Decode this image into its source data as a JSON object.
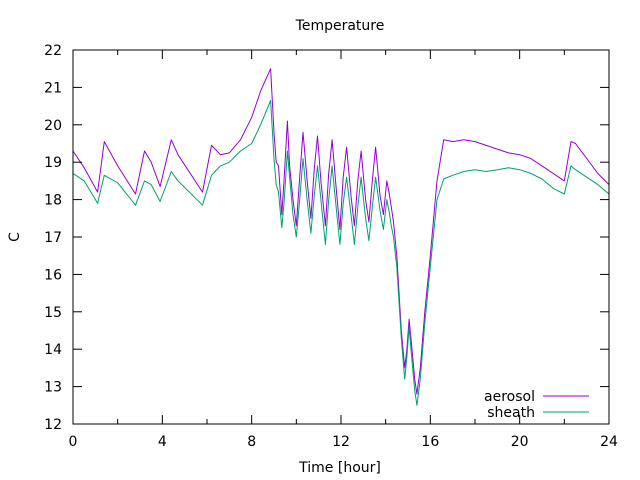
{
  "chart_data": {
    "type": "line",
    "title": "Temperature",
    "xlabel": "Time [hour]",
    "ylabel": "C",
    "xlim": [
      0,
      24
    ],
    "ylim": [
      12,
      22
    ],
    "xticks": [
      0,
      4,
      8,
      12,
      16,
      20,
      24
    ],
    "yticks": [
      12,
      13,
      14,
      15,
      16,
      17,
      18,
      19,
      20,
      21,
      22
    ],
    "x_minor_per_major": 2,
    "y_minor_per_major": 1,
    "grid": false,
    "legend_position": "bottom-right",
    "series": [
      {
        "name": "aerosol",
        "color": "#9400d3",
        "points": [
          [
            0,
            19.3
          ],
          [
            0.5,
            18.85
          ],
          [
            1.1,
            18.2
          ],
          [
            1.4,
            19.55
          ],
          [
            2.0,
            18.9
          ],
          [
            2.8,
            18.15
          ],
          [
            3.2,
            19.3
          ],
          [
            3.5,
            19.0
          ],
          [
            3.9,
            18.35
          ],
          [
            4.4,
            19.6
          ],
          [
            4.7,
            19.2
          ],
          [
            5.8,
            18.2
          ],
          [
            6.2,
            19.45
          ],
          [
            6.6,
            19.2
          ],
          [
            7.0,
            19.25
          ],
          [
            7.5,
            19.6
          ],
          [
            8.0,
            20.2
          ],
          [
            8.4,
            20.9
          ],
          [
            8.85,
            21.5
          ],
          [
            9.0,
            19.8
          ],
          [
            9.1,
            19.0
          ],
          [
            9.2,
            18.9
          ],
          [
            9.35,
            17.6
          ],
          [
            9.45,
            18.5
          ],
          [
            9.6,
            20.1
          ],
          [
            9.7,
            18.9
          ],
          [
            9.85,
            18.0
          ],
          [
            10.0,
            17.3
          ],
          [
            10.15,
            18.6
          ],
          [
            10.3,
            19.8
          ],
          [
            10.5,
            18.4
          ],
          [
            10.65,
            17.5
          ],
          [
            10.8,
            18.8
          ],
          [
            10.95,
            19.7
          ],
          [
            11.1,
            18.5
          ],
          [
            11.3,
            17.3
          ],
          [
            11.45,
            18.7
          ],
          [
            11.6,
            19.6
          ],
          [
            11.8,
            18.2
          ],
          [
            11.95,
            17.2
          ],
          [
            12.1,
            18.6
          ],
          [
            12.25,
            19.4
          ],
          [
            12.45,
            18.1
          ],
          [
            12.6,
            17.3
          ],
          [
            12.75,
            18.5
          ],
          [
            12.9,
            19.3
          ],
          [
            13.1,
            18.0
          ],
          [
            13.25,
            17.4
          ],
          [
            13.4,
            18.5
          ],
          [
            13.55,
            19.4
          ],
          [
            13.75,
            18.1
          ],
          [
            13.9,
            17.6
          ],
          [
            14.05,
            18.5
          ],
          [
            14.15,
            18.2
          ],
          [
            14.25,
            17.8
          ],
          [
            14.35,
            17.4
          ],
          [
            14.5,
            16.5
          ],
          [
            14.7,
            14.5
          ],
          [
            14.85,
            13.5
          ],
          [
            14.95,
            14.0
          ],
          [
            15.05,
            14.8
          ],
          [
            15.15,
            14.2
          ],
          [
            15.3,
            13.2
          ],
          [
            15.4,
            12.8
          ],
          [
            15.55,
            13.5
          ],
          [
            15.75,
            15.0
          ],
          [
            16.0,
            16.5
          ],
          [
            16.3,
            18.5
          ],
          [
            16.6,
            19.6
          ],
          [
            17.0,
            19.55
          ],
          [
            17.5,
            19.6
          ],
          [
            18.0,
            19.55
          ],
          [
            18.5,
            19.45
          ],
          [
            19.0,
            19.35
          ],
          [
            19.5,
            19.25
          ],
          [
            20.0,
            19.2
          ],
          [
            20.5,
            19.1
          ],
          [
            21.0,
            18.9
          ],
          [
            21.5,
            18.7
          ],
          [
            22.0,
            18.5
          ],
          [
            22.3,
            19.55
          ],
          [
            22.5,
            19.5
          ],
          [
            23.0,
            19.1
          ],
          [
            23.5,
            18.7
          ],
          [
            24.0,
            18.4
          ]
        ]
      },
      {
        "name": "sheath",
        "color": "#009e73",
        "points": [
          [
            0,
            18.7
          ],
          [
            0.5,
            18.5
          ],
          [
            1.1,
            17.9
          ],
          [
            1.4,
            18.65
          ],
          [
            2.0,
            18.45
          ],
          [
            2.8,
            17.85
          ],
          [
            3.2,
            18.5
          ],
          [
            3.5,
            18.4
          ],
          [
            3.9,
            17.95
          ],
          [
            4.4,
            18.75
          ],
          [
            4.7,
            18.5
          ],
          [
            5.8,
            17.85
          ],
          [
            6.2,
            18.65
          ],
          [
            6.6,
            18.9
          ],
          [
            7.0,
            19.0
          ],
          [
            7.5,
            19.3
          ],
          [
            8.0,
            19.5
          ],
          [
            8.4,
            20.0
          ],
          [
            8.85,
            20.65
          ],
          [
            9.0,
            19.1
          ],
          [
            9.1,
            18.4
          ],
          [
            9.2,
            18.2
          ],
          [
            9.35,
            17.25
          ],
          [
            9.45,
            17.9
          ],
          [
            9.6,
            19.3
          ],
          [
            9.7,
            18.6
          ],
          [
            9.85,
            17.6
          ],
          [
            10.0,
            17.0
          ],
          [
            10.15,
            18.0
          ],
          [
            10.3,
            19.1
          ],
          [
            10.5,
            17.9
          ],
          [
            10.65,
            17.1
          ],
          [
            10.8,
            18.1
          ],
          [
            10.95,
            18.9
          ],
          [
            11.1,
            18.0
          ],
          [
            11.3,
            16.8
          ],
          [
            11.45,
            18.0
          ],
          [
            11.6,
            18.9
          ],
          [
            11.8,
            17.7
          ],
          [
            11.95,
            16.8
          ],
          [
            12.1,
            17.9
          ],
          [
            12.25,
            18.6
          ],
          [
            12.45,
            17.6
          ],
          [
            12.6,
            16.8
          ],
          [
            12.75,
            17.8
          ],
          [
            12.9,
            18.6
          ],
          [
            13.1,
            17.5
          ],
          [
            13.25,
            16.9
          ],
          [
            13.4,
            17.8
          ],
          [
            13.55,
            18.6
          ],
          [
            13.75,
            17.7
          ],
          [
            13.9,
            17.2
          ],
          [
            14.05,
            18.0
          ],
          [
            14.15,
            17.7
          ],
          [
            14.25,
            17.3
          ],
          [
            14.35,
            17.0
          ],
          [
            14.5,
            16.2
          ],
          [
            14.7,
            14.3
          ],
          [
            14.85,
            13.2
          ],
          [
            14.95,
            13.8
          ],
          [
            15.05,
            14.6
          ],
          [
            15.15,
            13.9
          ],
          [
            15.3,
            12.9
          ],
          [
            15.4,
            12.5
          ],
          [
            15.55,
            13.2
          ],
          [
            15.75,
            14.7
          ],
          [
            16.0,
            16.2
          ],
          [
            16.3,
            18.0
          ],
          [
            16.6,
            18.55
          ],
          [
            17.0,
            18.65
          ],
          [
            17.5,
            18.75
          ],
          [
            18.0,
            18.8
          ],
          [
            18.5,
            18.75
          ],
          [
            19.0,
            18.8
          ],
          [
            19.5,
            18.85
          ],
          [
            20.0,
            18.8
          ],
          [
            20.5,
            18.7
          ],
          [
            21.0,
            18.55
          ],
          [
            21.5,
            18.3
          ],
          [
            22.0,
            18.15
          ],
          [
            22.3,
            18.9
          ],
          [
            22.5,
            18.8
          ],
          [
            23.0,
            18.6
          ],
          [
            23.5,
            18.4
          ],
          [
            24.0,
            18.15
          ]
        ]
      }
    ]
  }
}
